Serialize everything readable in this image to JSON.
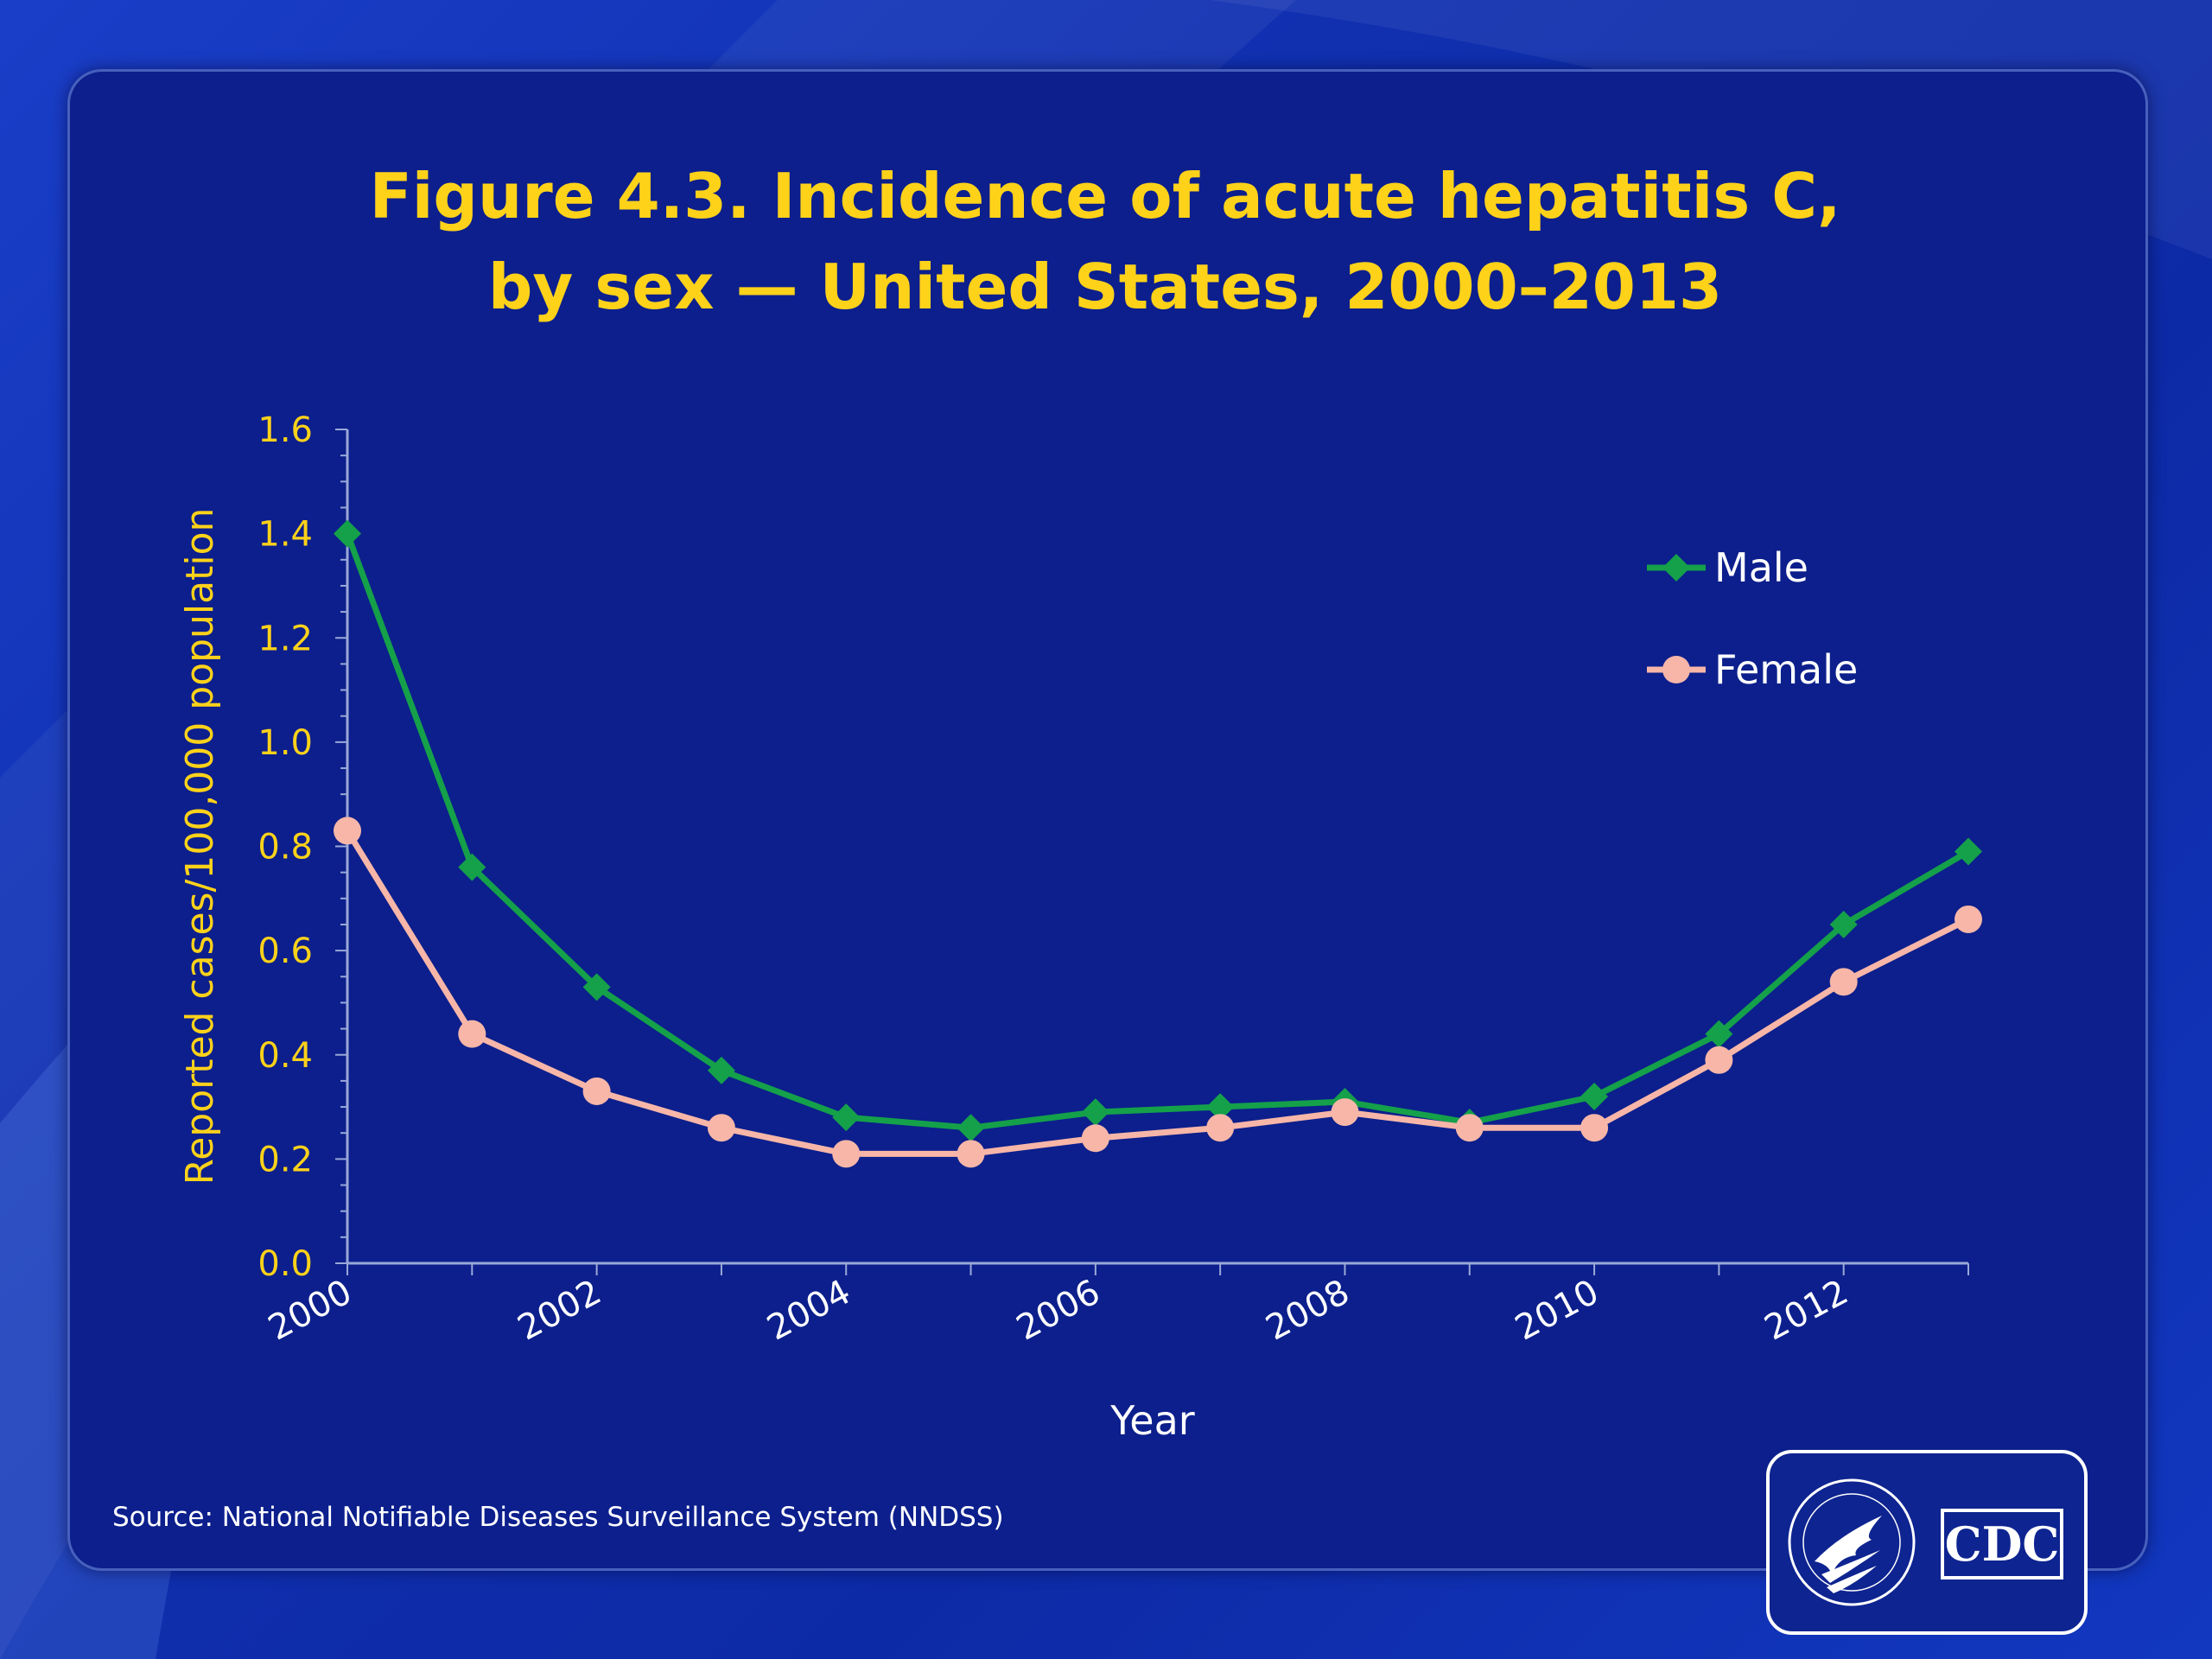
{
  "title_line1": "Figure 4.3. Incidence of acute hepatitis C,",
  "title_line2": "by sex — United States, 2000–2013",
  "source": "Source: National Notifiable Diseases Surveillance System (NNDSS)",
  "logo": {
    "text": "CDC",
    "seal_icon": "hhs-eagle-seal-icon"
  },
  "colors": {
    "male": "#15a04a",
    "female": "#f7b6a8",
    "title": "#ffd21a",
    "axis": "#9aa8d8"
  },
  "chart_data": {
    "type": "line",
    "title": "Figure 4.3. Incidence of acute hepatitis C, by sex — United States, 2000–2013",
    "xlabel": "Year",
    "ylabel": "Reported cases/100,000 population",
    "x": [
      2000,
      2001,
      2002,
      2003,
      2004,
      2005,
      2006,
      2007,
      2008,
      2009,
      2010,
      2011,
      2012,
      2013
    ],
    "x_tick_labels": [
      "2000",
      "2002",
      "2004",
      "2006",
      "2008",
      "2010",
      "2012"
    ],
    "y_tick_labels": [
      "0.0",
      "0.2",
      "0.4",
      "0.6",
      "0.8",
      "1.0",
      "1.2",
      "1.4",
      "1.6"
    ],
    "ylim": [
      0,
      1.6
    ],
    "grid": false,
    "legend_position": "top-right",
    "series": [
      {
        "name": "Male",
        "marker": "diamond",
        "values": [
          1.4,
          0.76,
          0.53,
          0.37,
          0.28,
          0.26,
          0.29,
          0.3,
          0.31,
          0.27,
          0.32,
          0.44,
          0.65,
          0.79
        ]
      },
      {
        "name": "Female",
        "marker": "circle",
        "values": [
          0.83,
          0.44,
          0.33,
          0.26,
          0.21,
          0.21,
          0.24,
          0.26,
          0.29,
          0.26,
          0.26,
          0.39,
          0.54,
          0.66
        ]
      }
    ]
  }
}
